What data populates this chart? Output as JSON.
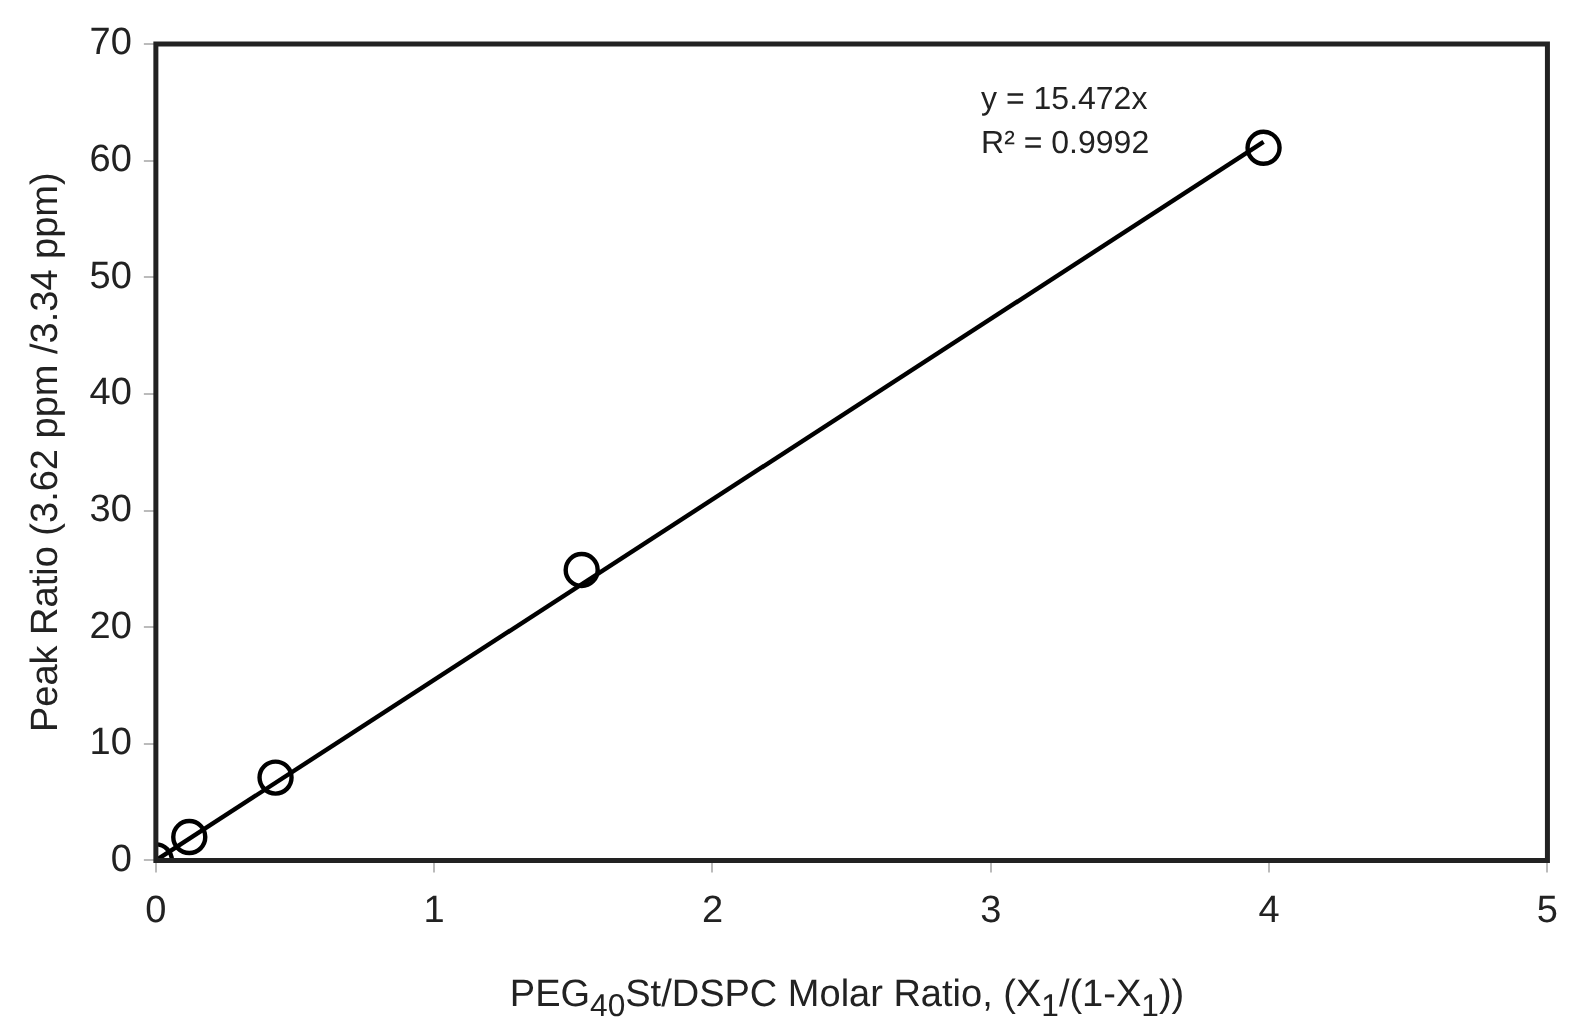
{
  "chart_data": {
    "type": "scatter",
    "xlabel": "PEG$_{40}$St/DSPC Molar Ratio, (X$_{1}$/(1-X$_{1}$))",
    "ylabel": "Peak Ratio (3.62 ppm /3.34 ppm)",
    "series": [
      {
        "type": "scatter",
        "color": "#000000",
        "marker": "circle",
        "x": [
          0,
          0.12,
          0.43,
          1.53,
          3.98
        ],
        "values": [
          0,
          2.0,
          7.1,
          24.9,
          61.1
        ]
      },
      {
        "type": "line",
        "color": "#000000",
        "marker": "none",
        "line_style": "solid",
        "x": [
          0,
          3.98
        ],
        "values": [
          0,
          61.6
        ]
      }
    ],
    "annotations": [
      "y = 15.472x",
      "R² = 0.9992"
    ],
    "xlim": [
      0,
      5
    ],
    "xticks": [
      0,
      1,
      2,
      3,
      4,
      5
    ],
    "ylim": [
      0,
      70
    ],
    "yticks": [
      0,
      10,
      20,
      30,
      40,
      50,
      60,
      70
    ],
    "grid": false,
    "legend": false
  }
}
